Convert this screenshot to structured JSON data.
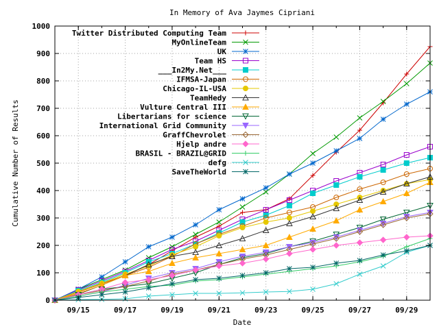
{
  "chart_data": {
    "type": "line",
    "title": "In Memory of Ava Jaymes Cipriani",
    "xlabel": "Date",
    "ylabel": "Cumulative Number of Results",
    "xlim": [
      "09/14",
      "09/30"
    ],
    "ylim": [
      0,
      1000
    ],
    "x_tick_labels": [
      "09/15",
      "09/17",
      "09/19",
      "09/21",
      "09/23",
      "09/25",
      "09/27",
      "09/29"
    ],
    "y_tick_labels": [
      "0",
      "100",
      "200",
      "300",
      "400",
      "500",
      "600",
      "700",
      "800",
      "900",
      "1000"
    ],
    "grid": true,
    "legend_position": "top-left",
    "x": [
      "09/14",
      "09/15",
      "09/16",
      "09/17",
      "09/18",
      "09/19",
      "09/20",
      "09/21",
      "09/22",
      "09/23",
      "09/24",
      "09/25",
      "09/26",
      "09/27",
      "09/28",
      "09/29",
      "09/30"
    ],
    "series": [
      {
        "name": "Twitter Distributed Computing Team",
        "color": "#cc0000",
        "marker": "plus",
        "values": [
          0,
          30,
          60,
          90,
          130,
          180,
          230,
          270,
          320,
          330,
          370,
          455,
          540,
          620,
          720,
          825,
          925
        ]
      },
      {
        "name": "MyOnlineTeam",
        "color": "#009900",
        "marker": "x",
        "values": [
          0,
          40,
          75,
          110,
          155,
          195,
          240,
          285,
          340,
          395,
          460,
          535,
          595,
          665,
          725,
          790,
          865
        ]
      },
      {
        "name": "UK",
        "color": "#0066cc",
        "marker": "star",
        "values": [
          0,
          40,
          85,
          140,
          195,
          230,
          275,
          330,
          370,
          410,
          460,
          500,
          545,
          590,
          660,
          715,
          760
        ]
      },
      {
        "name": "Team HS",
        "color": "#9900cc",
        "marker": "square",
        "values": [
          0,
          38,
          70,
          105,
          145,
          185,
          215,
          255,
          295,
          330,
          365,
          400,
          435,
          465,
          495,
          530,
          560
        ]
      },
      {
        "name": "___In2My.Net___",
        "color": "#00cccc",
        "marker": "filled-square",
        "values": [
          0,
          35,
          65,
          100,
          140,
          170,
          205,
          245,
          285,
          310,
          345,
          390,
          420,
          450,
          475,
          500,
          520
        ]
      },
      {
        "name": "IFMSA-Japan",
        "color": "#cc6600",
        "marker": "circle",
        "values": [
          0,
          30,
          60,
          90,
          120,
          160,
          205,
          240,
          270,
          300,
          320,
          340,
          375,
          405,
          430,
          460,
          480
        ]
      },
      {
        "name": "Chicago-IL-USA",
        "color": "#e6c800",
        "marker": "filled-circle",
        "values": [
          0,
          32,
          62,
          95,
          125,
          165,
          195,
          235,
          265,
          285,
          300,
          325,
          350,
          375,
          400,
          425,
          440
        ]
      },
      {
        "name": "TeamHedy",
        "color": "#333333",
        "marker": "triangle",
        "values": [
          0,
          22,
          55,
          90,
          130,
          160,
          175,
          200,
          225,
          255,
          280,
          305,
          335,
          365,
          395,
          425,
          450
        ]
      },
      {
        "name": "Vulture Central III",
        "color": "#ffaa00",
        "marker": "filled-triangle",
        "values": [
          0,
          25,
          55,
          90,
          105,
          135,
          155,
          170,
          185,
          200,
          230,
          260,
          290,
          330,
          360,
          390,
          430
        ]
      },
      {
        "name": "Libertarians for science",
        "color": "#006633",
        "marker": "inverted-triangle",
        "values": [
          0,
          20,
          40,
          50,
          60,
          80,
          100,
          130,
          155,
          170,
          195,
          215,
          240,
          265,
          295,
          320,
          345
        ]
      },
      {
        "name": "International Grid Community",
        "color": "#9966ff",
        "marker": "filled-inverted-triangle",
        "values": [
          0,
          15,
          30,
          55,
          80,
          100,
          115,
          140,
          160,
          175,
          195,
          210,
          230,
          255,
          280,
          305,
          320
        ]
      },
      {
        "name": "GraffChevrolet",
        "color": "#996633",
        "marker": "diamond",
        "values": [
          0,
          20,
          35,
          50,
          70,
          95,
          110,
          130,
          150,
          165,
          185,
          205,
          225,
          250,
          275,
          300,
          315
        ]
      },
      {
        "name": "Hjelp andre",
        "color": "#ff66cc",
        "marker": "filled-diamond",
        "values": [
          0,
          20,
          40,
          65,
          75,
          90,
          110,
          125,
          135,
          150,
          170,
          185,
          200,
          210,
          220,
          230,
          235
        ]
      },
      {
        "name": "BRASIL - BRAZIL@GRID",
        "color": "#33cc66",
        "marker": "plus",
        "values": [
          0,
          15,
          30,
          40,
          50,
          55,
          70,
          75,
          85,
          95,
          105,
          115,
          125,
          140,
          160,
          195,
          225
        ]
      },
      {
        "name": "defg",
        "color": "#33cccc",
        "marker": "x",
        "values": [
          0,
          2,
          3,
          5,
          15,
          20,
          25,
          25,
          27,
          30,
          32,
          40,
          60,
          95,
          125,
          175,
          200
        ]
      },
      {
        "name": "SaveTheWorld",
        "color": "#006666",
        "marker": "star",
        "values": [
          0,
          10,
          20,
          30,
          45,
          60,
          75,
          80,
          90,
          100,
          115,
          120,
          135,
          145,
          165,
          180,
          200
        ]
      }
    ]
  }
}
